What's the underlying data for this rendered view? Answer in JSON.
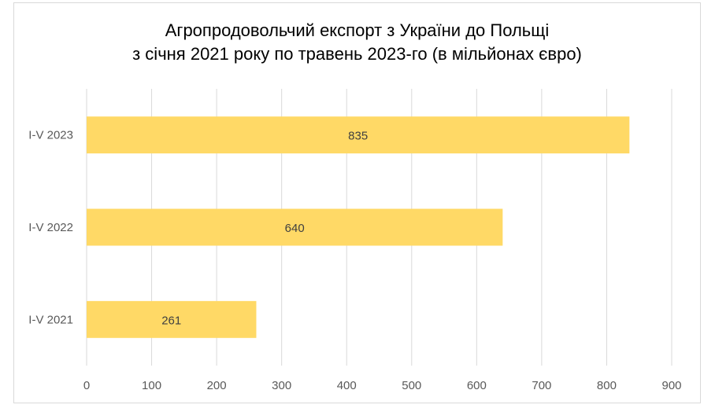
{
  "chart_data": {
    "type": "bar",
    "orientation": "horizontal",
    "title_line1": "Агропродовольчий експорт з України до Польщі",
    "title_line2": "з січня 2021 року по травень 2023-го (в мільйонах євро)",
    "categories": [
      "I-V 2023",
      "I-V 2022",
      "I-V 2021"
    ],
    "values": [
      835,
      640,
      261
    ],
    "data_labels": [
      "835",
      "640",
      "261"
    ],
    "xlim": [
      0,
      900
    ],
    "x_ticks": [
      0,
      100,
      200,
      300,
      400,
      500,
      600,
      700,
      800,
      900
    ],
    "grid": "vertical",
    "legend": "none",
    "bar_color": "#ffd966",
    "grid_color": "#d9d9d9"
  }
}
